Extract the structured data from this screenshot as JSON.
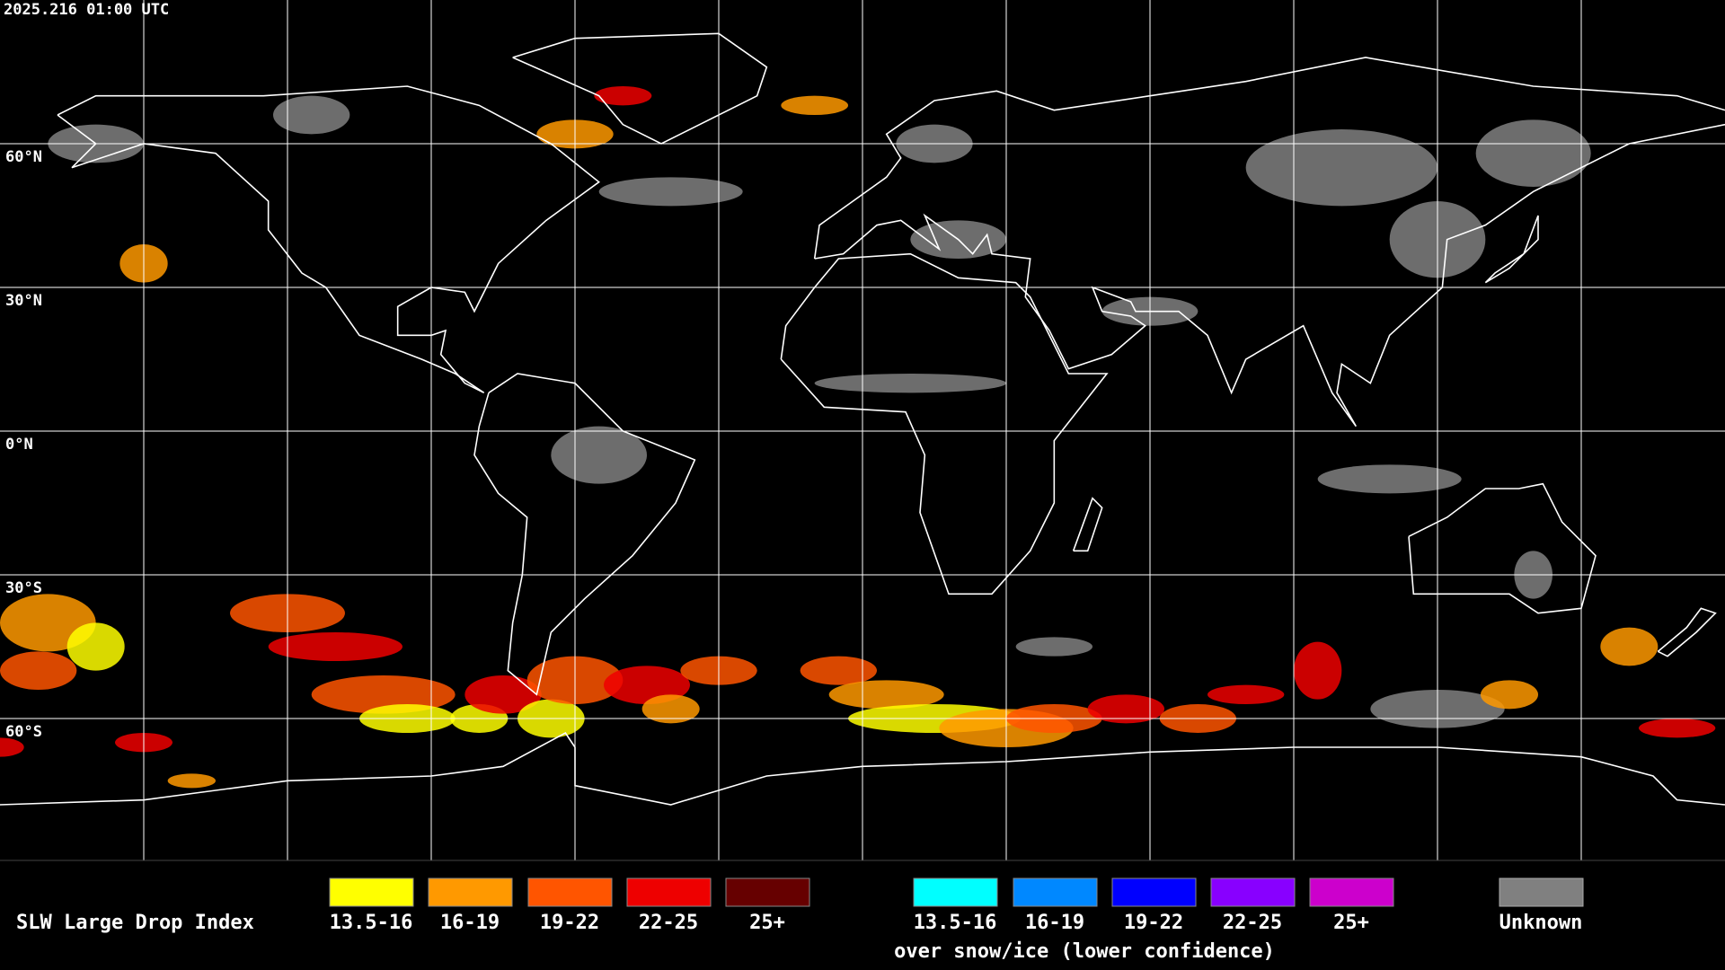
{
  "header": {
    "timestamp": "2025.216 01:00 UTC"
  },
  "map": {
    "latitude_labels": [
      "60°N",
      "30°N",
      "0°N",
      "30°S",
      "60°S"
    ]
  },
  "legend": {
    "title": "SLW Large Drop Index",
    "groups": [
      {
        "items": [
          {
            "label": "13.5-16",
            "color": "#ffff00"
          },
          {
            "label": "16-19",
            "color": "#ff9900"
          },
          {
            "label": "19-22",
            "color": "#ff5500"
          },
          {
            "label": "22-25",
            "color": "#ee0000"
          },
          {
            "label": "25+",
            "color": "#660000"
          }
        ]
      },
      {
        "items": [
          {
            "label": "13.5-16",
            "color": "#00ffff"
          },
          {
            "label": "16-19",
            "color": "#0088ff"
          },
          {
            "label": "19-22",
            "color": "#0000ff"
          },
          {
            "label": "22-25",
            "color": "#8800ff"
          },
          {
            "label": "25+",
            "color": "#cc00cc"
          }
        ],
        "note": "over snow/ice (lower confidence)"
      }
    ],
    "unknown": {
      "label": "Unknown",
      "color": "#808080"
    }
  }
}
